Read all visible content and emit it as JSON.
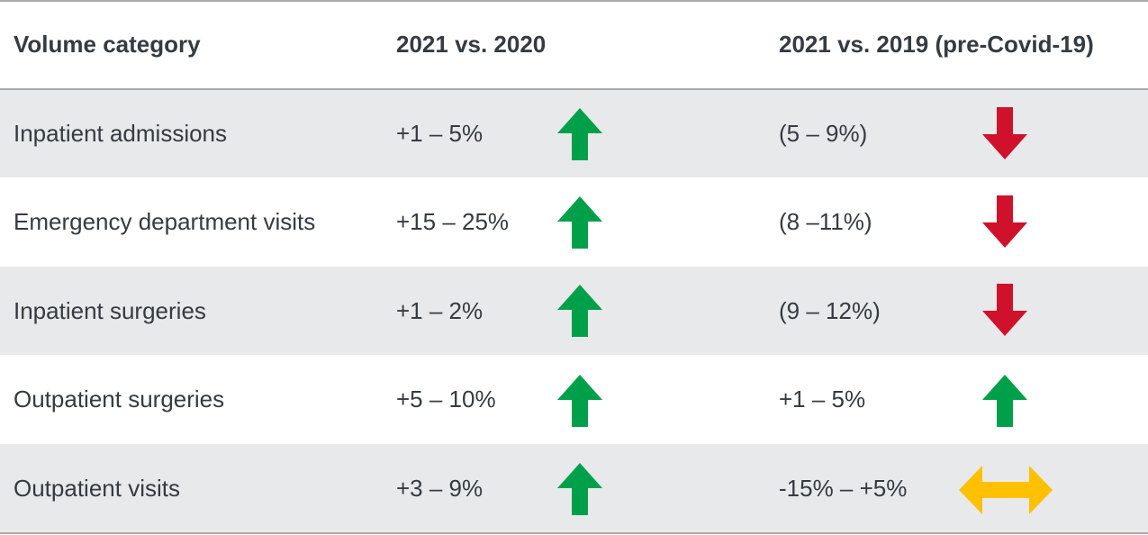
{
  "table": {
    "header": [
      "Volume category",
      "2021 vs. 2020",
      "2021 vs. 2019 (pre-Covid-19)"
    ],
    "rows": [
      [
        "Inpatient admissions",
        "+1 – 5%",
        "(5 – 9%)"
      ],
      [
        "Emergency department visits",
        "+15 – 25%",
        "(8 –11%)"
      ],
      [
        "Inpatient surgeries",
        "+1 – 2%",
        "(9 – 12%)"
      ],
      [
        "Outpatient surgeries",
        "+5 – 10%",
        "+1 – 5%"
      ],
      [
        "Outpatient visits",
        "+3 – 9%",
        "-15% – +5%"
      ]
    ]
  }
}
